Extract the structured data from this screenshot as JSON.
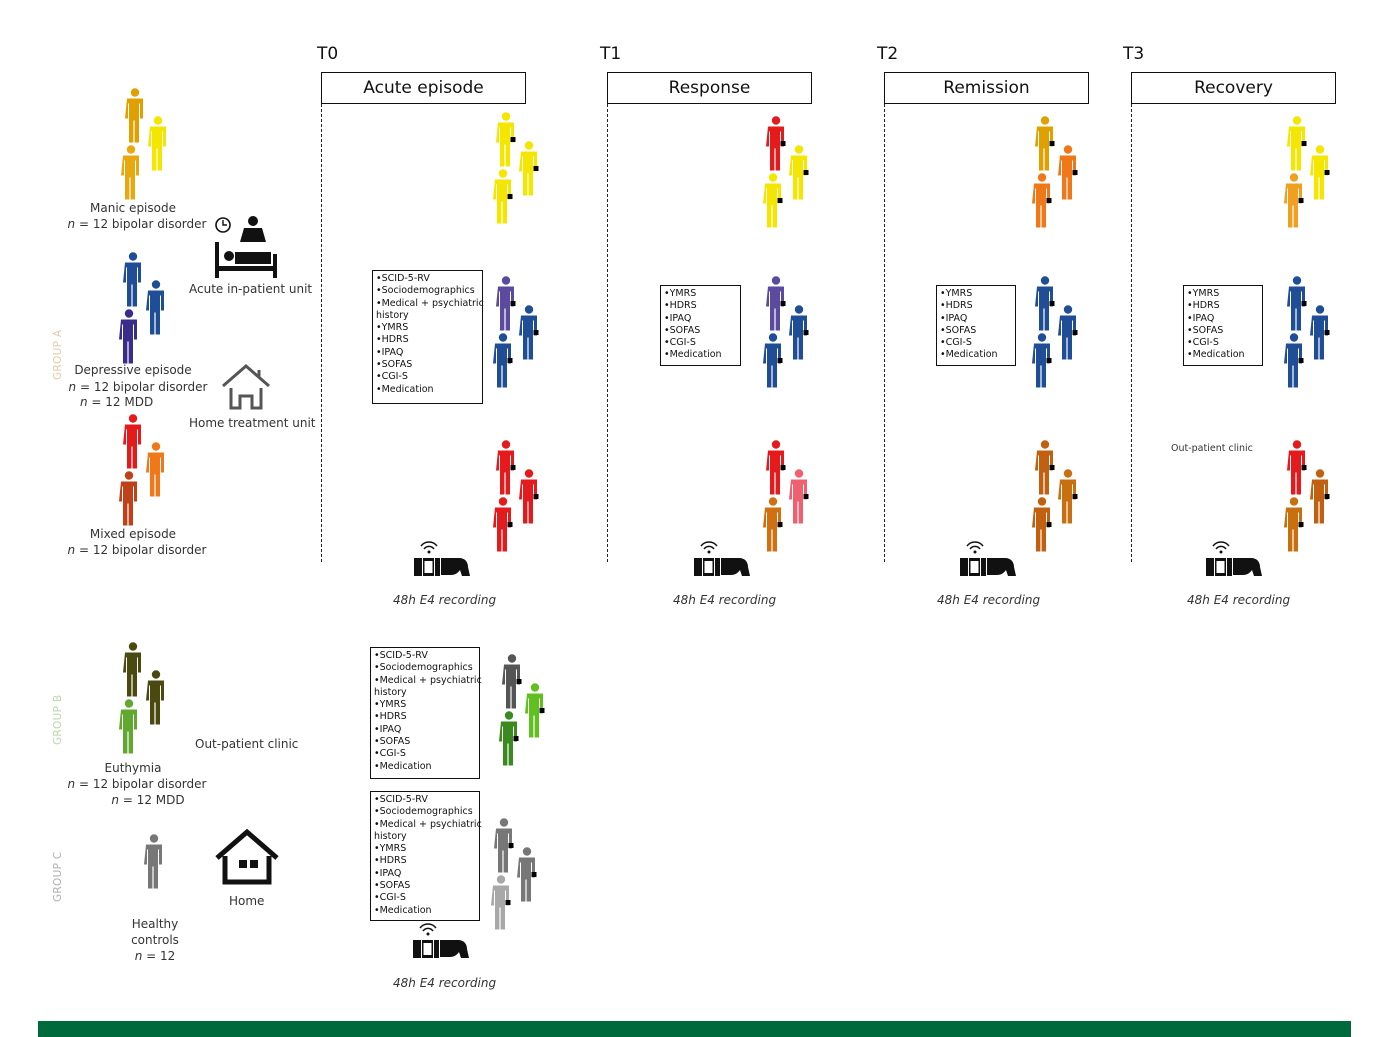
{
  "timepoints": [
    {
      "t": "T0",
      "phase": "Acute episode"
    },
    {
      "t": "T1",
      "phase": "Response"
    },
    {
      "t": "T2",
      "phase": "Remission"
    },
    {
      "t": "T3",
      "phase": "Recovery"
    }
  ],
  "groups": {
    "a_label": "GROUP A",
    "b_label": "GROUP B",
    "c_label": "GROUP C"
  },
  "participants": {
    "manic": {
      "line1": "Manic episode",
      "n_prefix": "n",
      "n_rest": " = 12 bipolar disorder"
    },
    "depressive": {
      "line1": "Depressive episode",
      "n_prefix": "n",
      "n_rest": " = 12 bipolar disorder",
      "n2_prefix": "n",
      "n2_rest": " = 12 MDD"
    },
    "mixed": {
      "line1": "Mixed episode",
      "n_prefix": "n",
      "n_rest": " = 12 bipolar disorder"
    },
    "euthymia": {
      "line1": "Euthymia",
      "n_prefix": "n",
      "n_rest": " = 12 bipolar disorder",
      "n2_prefix": "n",
      "n2_rest": " = 12 MDD"
    },
    "healthy": {
      "line1": "Healthy",
      "line2": "controls",
      "n_prefix": "n",
      "n_rest": " = 12"
    }
  },
  "settings": {
    "inpatient": "Acute in-patient unit",
    "home_treatment": "Home treatment unit",
    "outpatient": "Out-patient clinic",
    "home": "Home",
    "outpatient_t3": "Out-patient clinic"
  },
  "assessments_t0": [
    "•SCID-5-RV",
    "•Sociodemographics",
    "•Medical + psychiatric",
    "history",
    "•YMRS",
    "•HDRS",
    "•IPAQ",
    "•SOFAS",
    "•CGI-S",
    "•Medication"
  ],
  "assessments_followup": [
    "•YMRS",
    "•HDRS",
    "•IPAQ",
    "•SOFAS",
    "•CGI-S",
    "•Medication"
  ],
  "recording_label": "48h E4 recording",
  "colors": {
    "footer": "#006a3d",
    "group_a": "#e8c8a8",
    "group_b": "#b8d8a8",
    "group_c": "#b0b0b0",
    "yellow": "#f5e600",
    "gold": "#e0a000",
    "orange": "#f07818",
    "red": "#e41a1c",
    "rust": "#c0501a",
    "blue": "#1f4e96",
    "purple": "#5a4aa0",
    "olive": "#4a4a10",
    "green": "#60a830",
    "grey": "#777777"
  }
}
